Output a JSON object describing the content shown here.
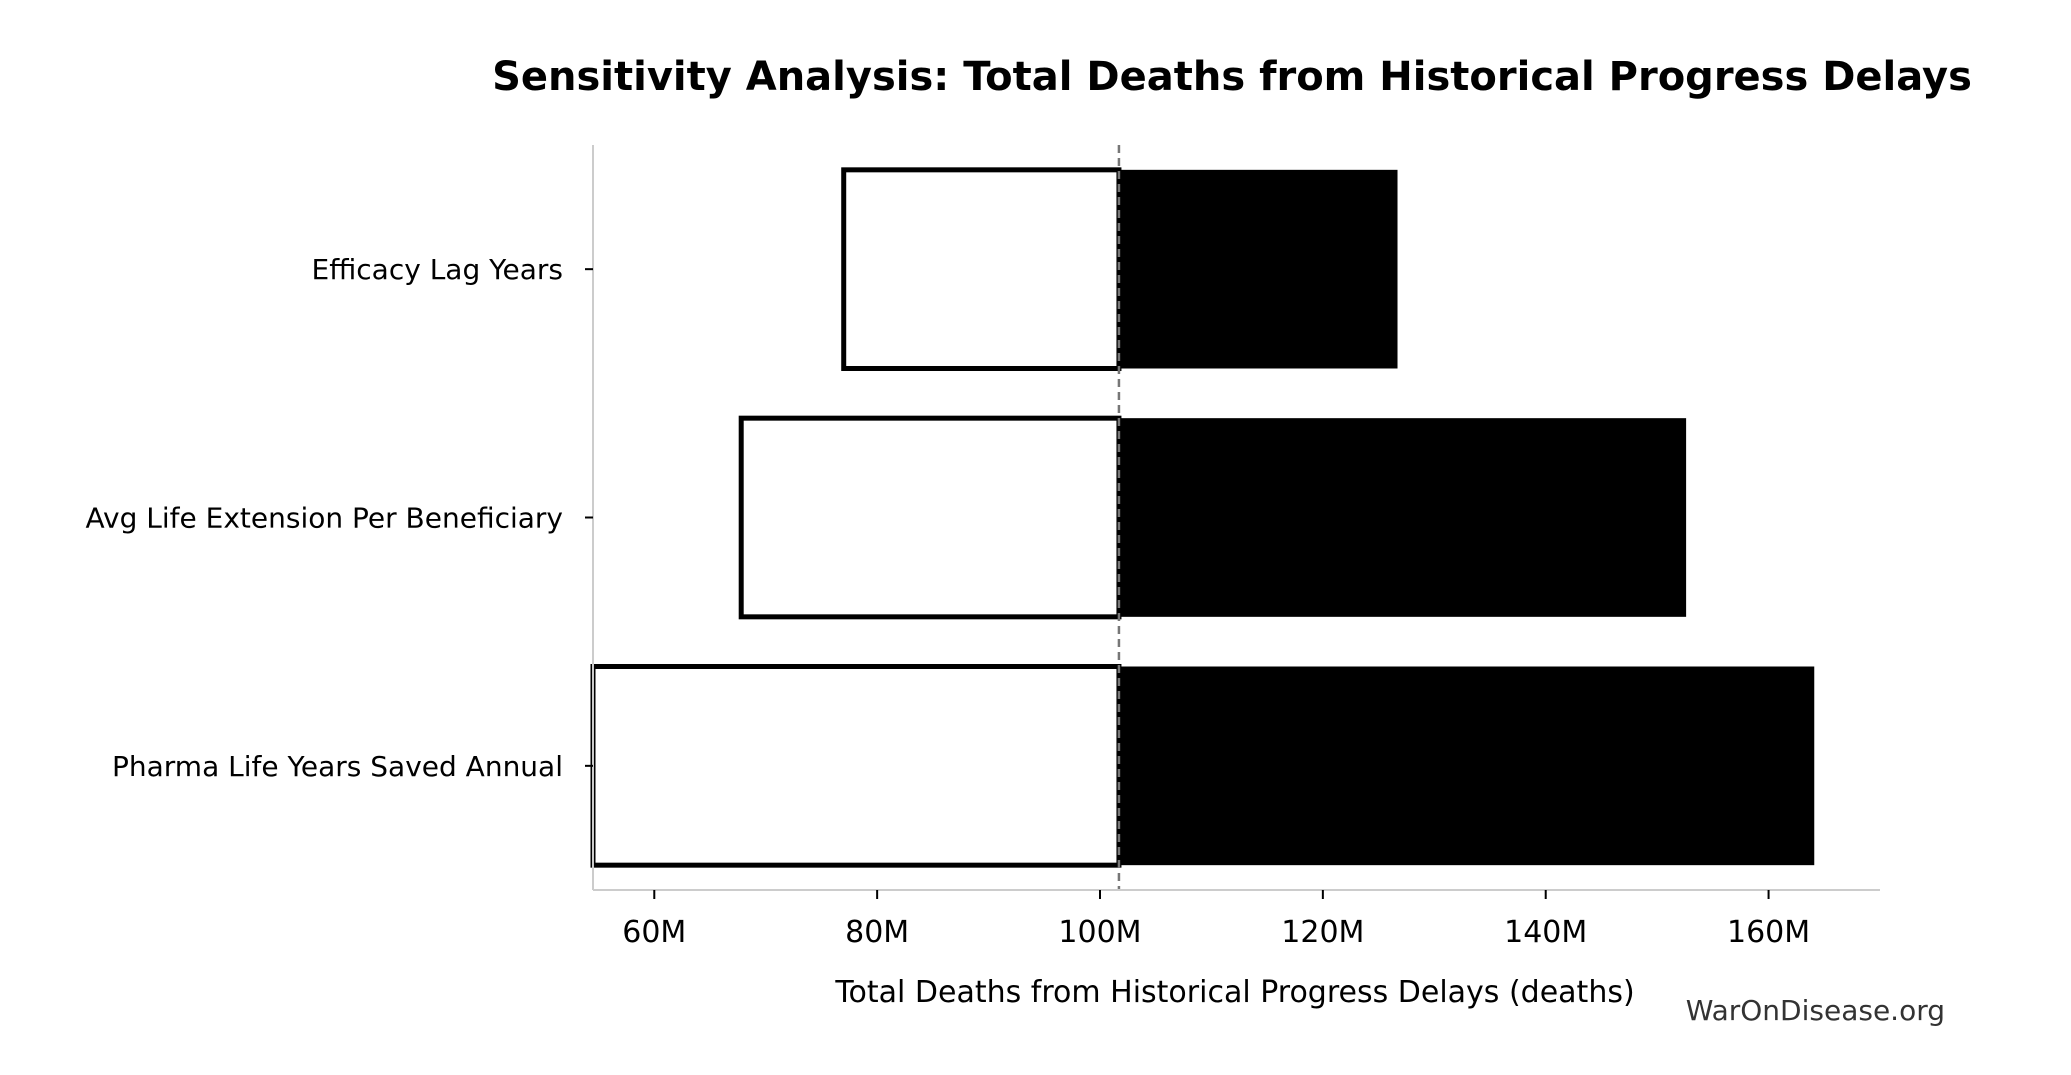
{
  "chart_data": {
    "type": "bar",
    "subtype": "tornado",
    "title": "Sensitivity Analysis: Total Deaths from Historical Progress Delays",
    "xlabel": "Total Deaths from Historical Progress Delays (deaths)",
    "ylabel": "",
    "xlim": [
      54.5,
      170
    ],
    "x_unit": "M",
    "baseline": 101.7,
    "xticks": [
      60,
      80,
      100,
      120,
      140,
      160
    ],
    "xtick_labels": [
      "60M",
      "80M",
      "100M",
      "120M",
      "140M",
      "160M"
    ],
    "categories": [
      "Efficacy Lag Years",
      "Avg Life Extension Per Beneficiary",
      "Pharma Life Years Saved Annual"
    ],
    "series": [
      {
        "key": "low",
        "values": [
          77.0,
          67.8,
          54.5
        ]
      },
      {
        "key": "high",
        "values": [
          126.7,
          152.6,
          164.1
        ]
      }
    ],
    "colors": {
      "low_fill": "#ffffff",
      "low_stroke": "#000000",
      "high_fill": "#000000",
      "baseline": "#777777",
      "axis": "#cccccc"
    },
    "grid": false,
    "legend": "none"
  },
  "watermark": "WarOnDisease.org"
}
